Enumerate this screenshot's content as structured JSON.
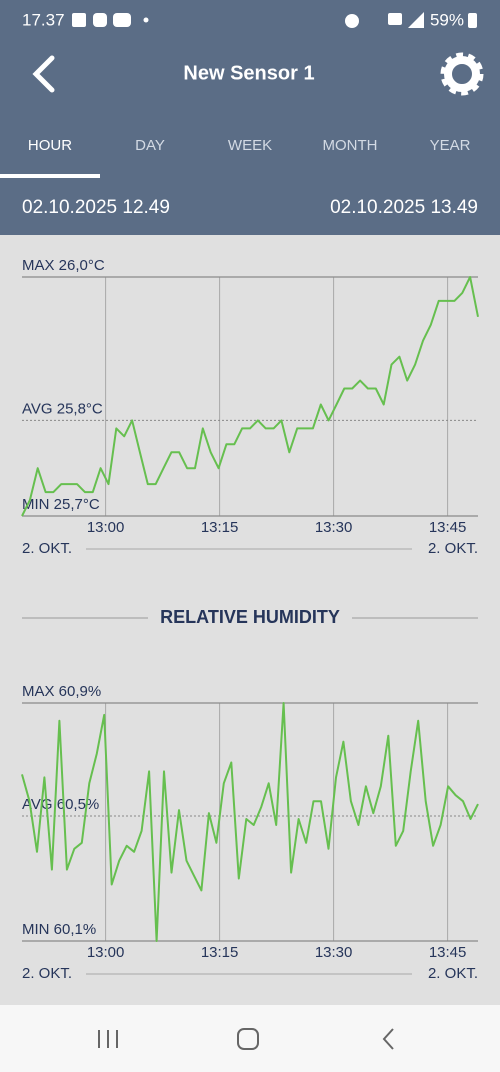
{
  "status_bar": {
    "time": "17.37",
    "battery": "59%"
  },
  "header": {
    "title": "New Sensor 1"
  },
  "tabs": [
    "HOUR",
    "DAY",
    "WEEK",
    "MONTH",
    "YEAR"
  ],
  "active_tab": 0,
  "range": {
    "start": "02.10.2025 12.49",
    "end": "02.10.2025 13.49"
  },
  "charts": [
    {
      "type": "line",
      "color": "#66bf4f",
      "max_label": "MAX 26,0°C",
      "avg_label": "AVG 25,8°C",
      "min_label": "MIN 25,7°C",
      "ylim": [
        25.7,
        26.0
      ],
      "avg": 25.82,
      "xticks": [
        "13:00",
        "13:15",
        "13:30",
        "13:45"
      ],
      "date_left": "2. OKT.",
      "date_right": "2. OKT.",
      "values": [
        25.7,
        25.72,
        25.76,
        25.73,
        25.73,
        25.74,
        25.74,
        25.74,
        25.73,
        25.73,
        25.76,
        25.74,
        25.81,
        25.8,
        25.82,
        25.78,
        25.74,
        25.74,
        25.76,
        25.78,
        25.78,
        25.76,
        25.76,
        25.81,
        25.78,
        25.76,
        25.79,
        25.79,
        25.81,
        25.81,
        25.82,
        25.81,
        25.81,
        25.82,
        25.78,
        25.81,
        25.81,
        25.81,
        25.84,
        25.82,
        25.84,
        25.86,
        25.86,
        25.87,
        25.86,
        25.86,
        25.84,
        25.89,
        25.9,
        25.87,
        25.89,
        25.92,
        25.94,
        25.97,
        25.97,
        25.97,
        25.98,
        26.0,
        25.95
      ]
    },
    {
      "type": "line",
      "title": "RELATIVE HUMIDITY",
      "color": "#66bf4f",
      "max_label": "MAX 60,9%",
      "avg_label": "AVG 60,5%",
      "min_label": "MIN 60,1%",
      "ylim": [
        60.1,
        60.9
      ],
      "avg": 60.52,
      "xticks": [
        "13:00",
        "13:15",
        "13:30",
        "13:45"
      ],
      "date_left": "2. OKT.",
      "date_right": "2. OKT.",
      "values": [
        60.66,
        60.57,
        60.4,
        60.65,
        60.34,
        60.84,
        60.34,
        60.41,
        60.43,
        60.63,
        60.73,
        60.86,
        60.29,
        60.37,
        60.42,
        60.4,
        60.47,
        60.67,
        60.1,
        60.67,
        60.33,
        60.54,
        60.37,
        60.32,
        60.27,
        60.53,
        60.43,
        60.63,
        60.7,
        60.31,
        60.51,
        60.49,
        60.55,
        60.63,
        60.49,
        60.9,
        60.33,
        60.51,
        60.43,
        60.57,
        60.57,
        60.41,
        60.65,
        60.77,
        60.57,
        60.49,
        60.62,
        60.53,
        60.62,
        60.79,
        60.42,
        60.47,
        60.67,
        60.84,
        60.57,
        60.42,
        60.49,
        60.62,
        60.59,
        60.57,
        60.51,
        60.56
      ]
    }
  ]
}
